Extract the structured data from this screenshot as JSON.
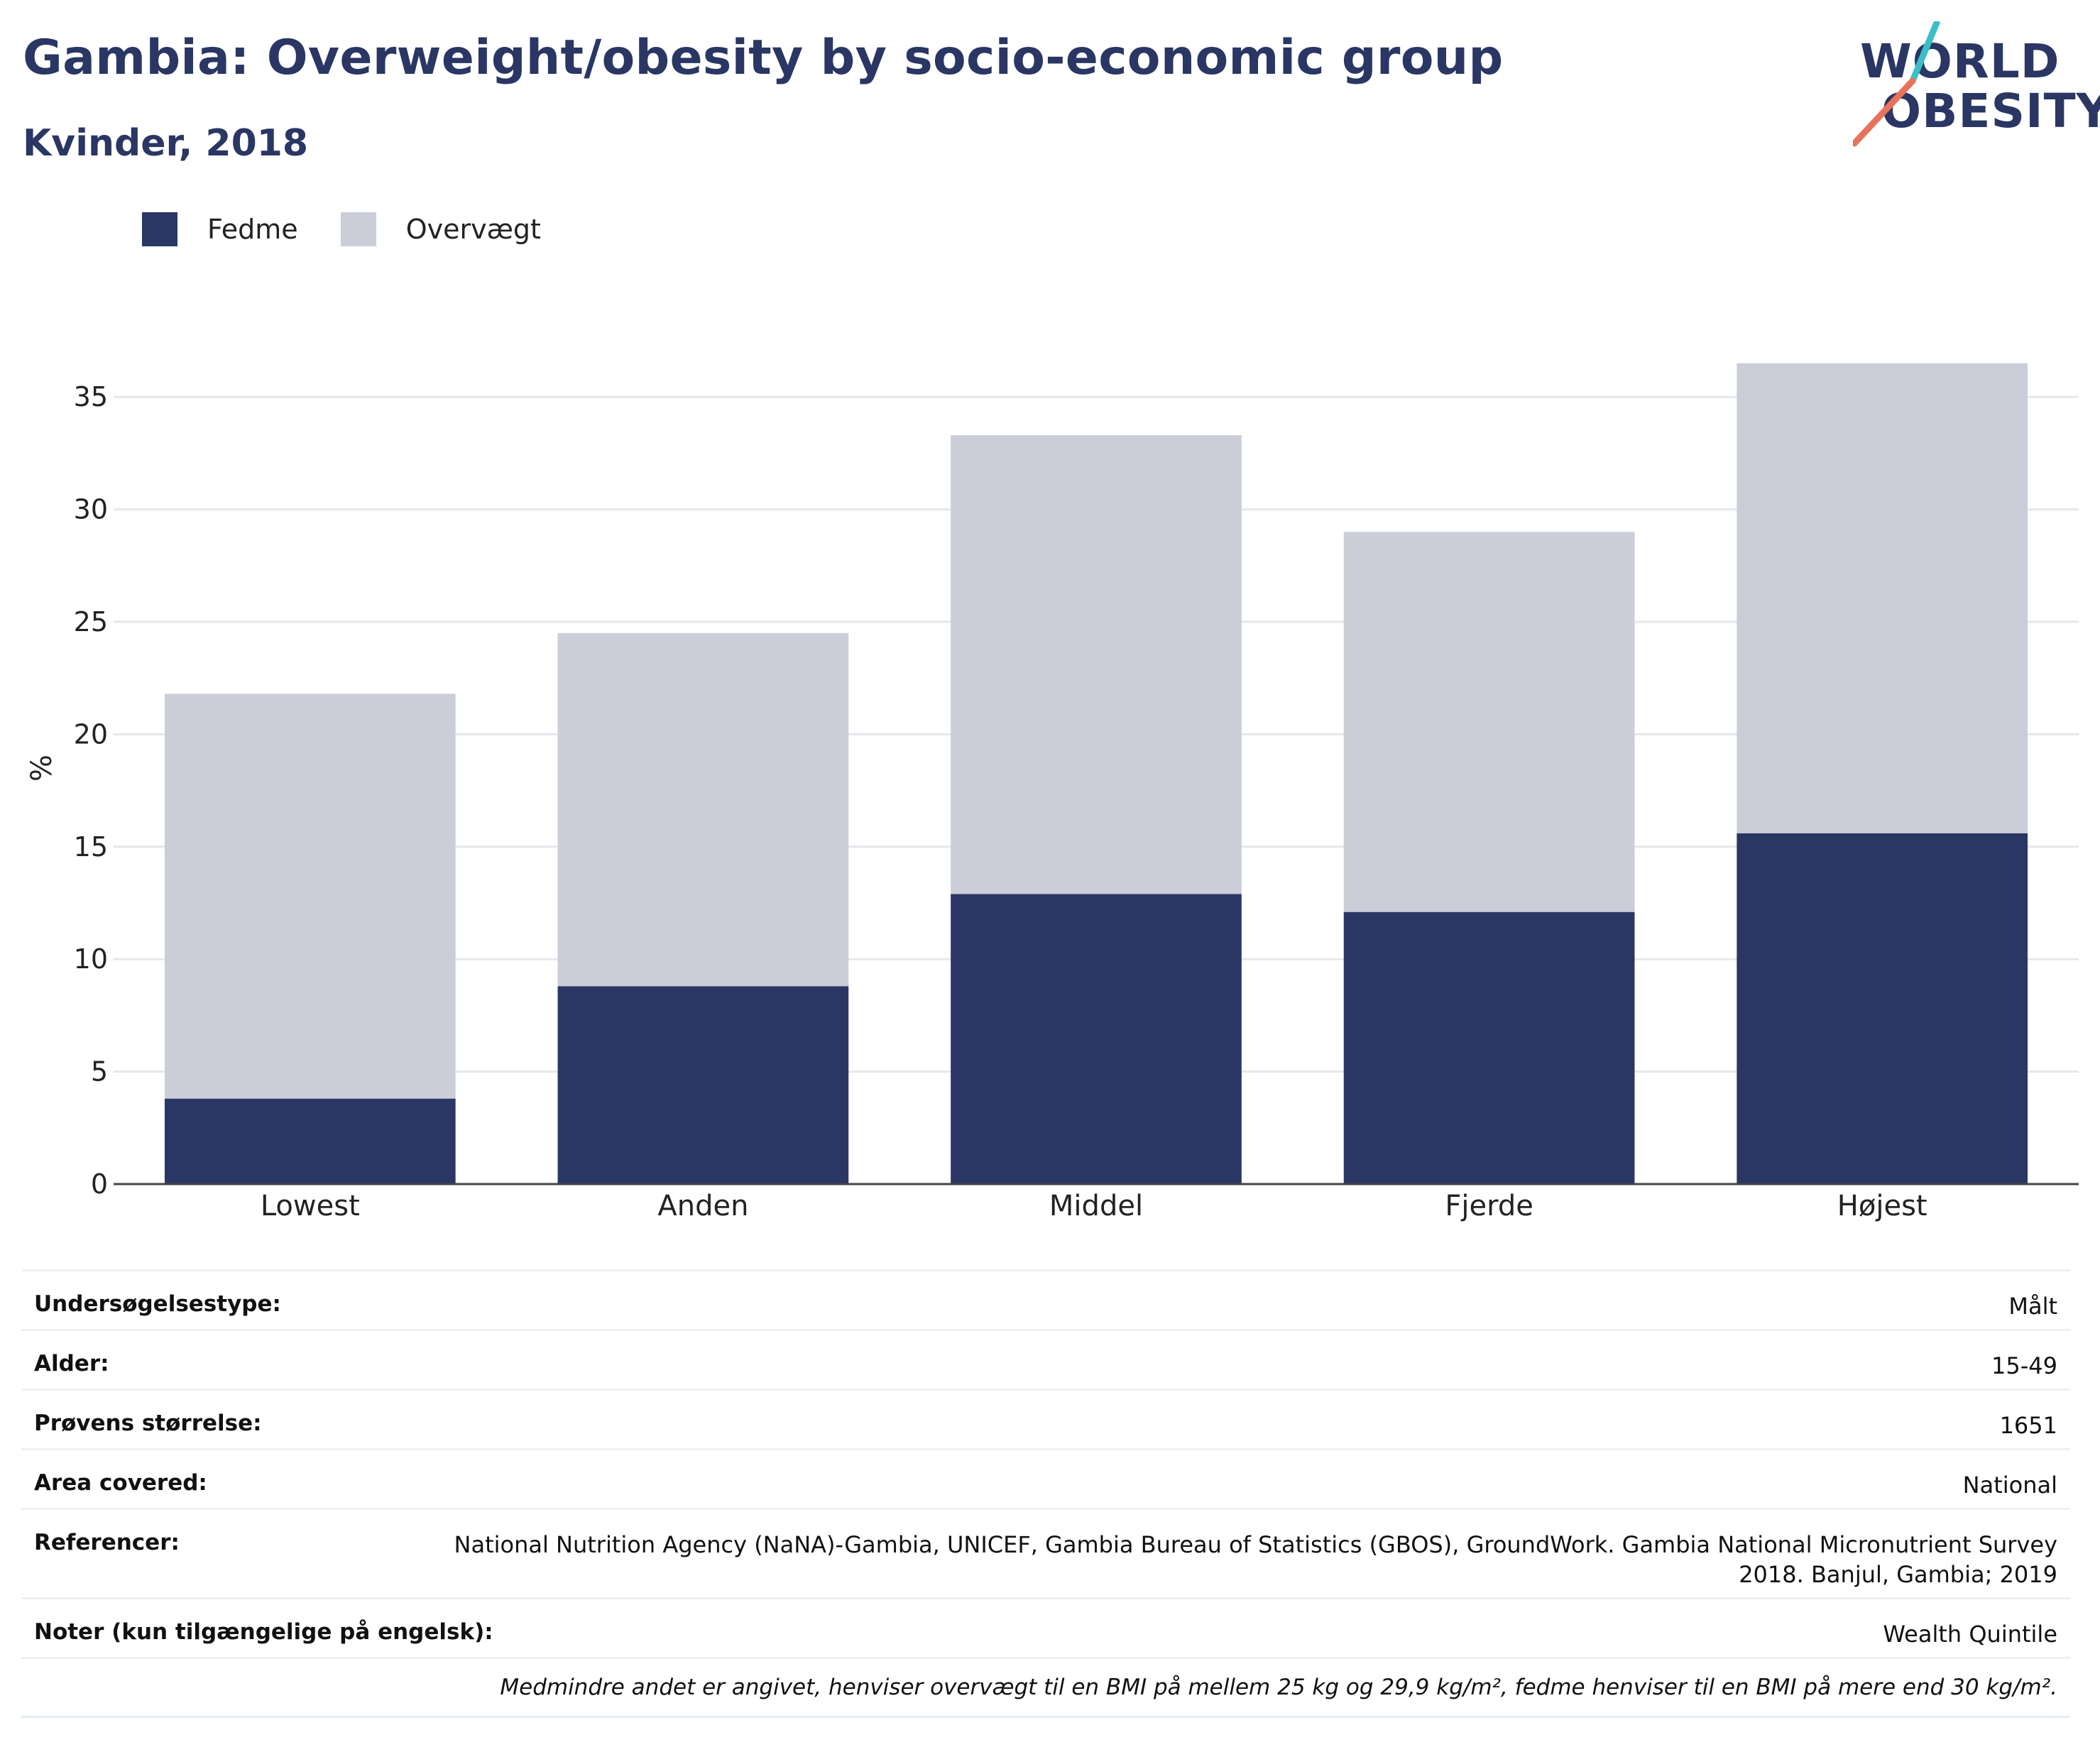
{
  "header": {
    "title": "Gambia: Overweight/obesity by socio-economic group",
    "subtitle": "Kvinder, 2018"
  },
  "logo": {
    "line1": "WORLD",
    "line2": "OBESITY",
    "slash_colors": [
      "#3bbfc7",
      "#e8735c"
    ]
  },
  "legend": [
    {
      "label": "Fedme",
      "color": "#2a3663"
    },
    {
      "label": "Overvægt",
      "color": "#cbcdd8"
    }
  ],
  "chart_data": {
    "type": "bar",
    "stacked": true,
    "categories": [
      "Lowest",
      "Anden",
      "Middel",
      "Fjerde",
      "Højest"
    ],
    "series": [
      {
        "name": "Fedme",
        "values": [
          3.8,
          8.8,
          12.9,
          12.1,
          15.6
        ],
        "color": "#2a3663"
      },
      {
        "name": "Overvægt",
        "values": [
          18.0,
          15.7,
          20.4,
          16.9,
          20.9
        ],
        "color": "#cbcdd8"
      }
    ],
    "ylabel": "%",
    "ylim": [
      0,
      37.5
    ],
    "yticks": [
      0,
      5,
      10,
      15,
      20,
      25,
      30,
      35
    ],
    "grid": true
  },
  "info": {
    "rows": [
      {
        "key": "Undersøgelsestype:",
        "value": "Målt"
      },
      {
        "key": "Alder:",
        "value": "15-49"
      },
      {
        "key": "Prøvens størrelse:",
        "value": "1651"
      },
      {
        "key": "Area covered:",
        "value": "National"
      },
      {
        "key": "Referencer:",
        "value": "National Nutrition Agency (NaNA)-Gambia, UNICEF, Gambia Bureau of Statistics (GBOS), GroundWork. Gambia National Micronutrient Survey 2018. Banjul, Gambia; 2019"
      },
      {
        "key": "Noter (kun tilgængelige på engelsk):",
        "value": "Wealth Quintile"
      }
    ],
    "footnote": "Medmindre andet er angivet, henviser overvægt til en BMI på mellem 25 kg og 29,9 kg/m², fedme henviser til en BMI på mere end 30 kg/m²."
  }
}
